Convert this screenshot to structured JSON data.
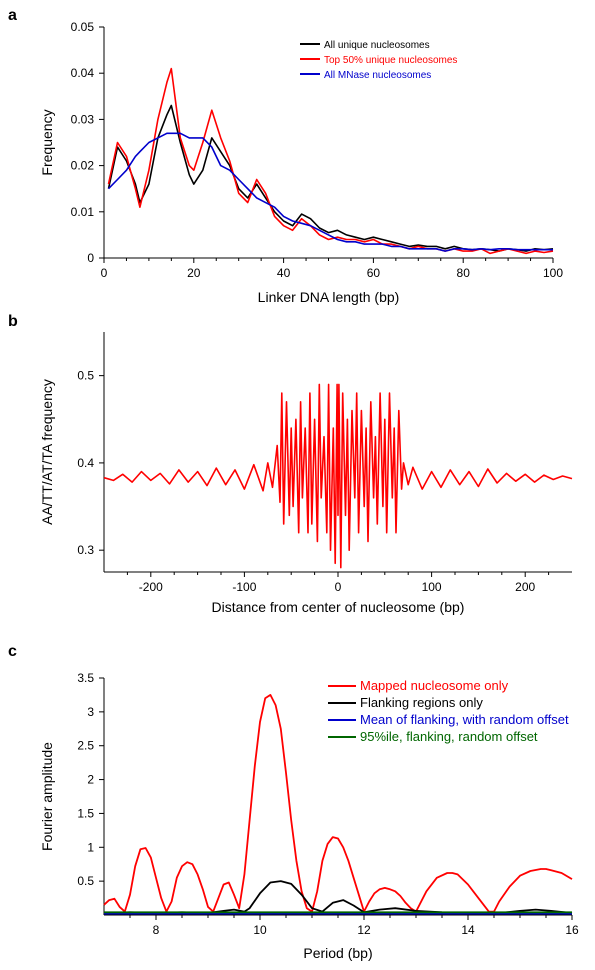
{
  "panels": {
    "a": {
      "letter": "a"
    },
    "b": {
      "letter": "b"
    },
    "c": {
      "letter": "c"
    }
  },
  "chart_data": [
    {
      "type": "line",
      "xlabel": "Linker DNA length (bp)",
      "ylabel": "Frequency",
      "xlim": [
        0,
        100
      ],
      "ylim": [
        0,
        0.05
      ],
      "x_ticks": [
        0,
        20,
        40,
        60,
        80,
        100
      ],
      "x_tick_labels": [
        "0",
        "20",
        "40",
        "60",
        "80",
        "100"
      ],
      "y_ticks": [
        0,
        0.01,
        0.02,
        0.03,
        0.04,
        0.05
      ],
      "y_tick_labels": [
        "0",
        "0.01",
        "0.02",
        "0.03",
        "0.04",
        "0.05"
      ],
      "legend_position": "top-right",
      "grid": false,
      "series": [
        {
          "name": "All unique nucleosomes",
          "color": "#000000",
          "x": [
            1,
            3,
            5,
            7,
            8,
            10,
            12,
            14,
            15,
            17,
            19,
            20,
            22,
            24,
            26,
            28,
            30,
            32,
            34,
            36,
            38,
            40,
            42,
            44,
            46,
            48,
            50,
            52,
            54,
            56,
            58,
            60,
            62,
            64,
            66,
            68,
            70,
            72,
            74,
            76,
            78,
            80,
            82,
            84,
            86,
            88,
            90,
            92,
            94,
            96,
            98,
            100
          ],
          "y": [
            0.015,
            0.024,
            0.021,
            0.016,
            0.012,
            0.016,
            0.026,
            0.031,
            0.033,
            0.025,
            0.018,
            0.016,
            0.019,
            0.026,
            0.023,
            0.02,
            0.015,
            0.013,
            0.016,
            0.013,
            0.01,
            0.008,
            0.007,
            0.0095,
            0.0085,
            0.0065,
            0.0055,
            0.006,
            0.005,
            0.0045,
            0.004,
            0.0045,
            0.004,
            0.0035,
            0.003,
            0.0025,
            0.0028,
            0.0025,
            0.0025,
            0.002,
            0.0025,
            0.002,
            0.0018,
            0.002,
            0.0018,
            0.0015,
            0.002,
            0.0018,
            0.0015,
            0.002,
            0.0018,
            0.002
          ]
        },
        {
          "name": "Top 50% unique nucleosomes",
          "color": "#ff0000",
          "x": [
            1,
            3,
            5,
            7,
            8,
            10,
            12,
            14,
            15,
            17,
            19,
            20,
            22,
            24,
            26,
            28,
            30,
            32,
            34,
            36,
            38,
            40,
            42,
            44,
            46,
            48,
            50,
            52,
            54,
            56,
            58,
            60,
            62,
            64,
            66,
            68,
            70,
            72,
            74,
            76,
            78,
            80,
            82,
            84,
            86,
            88,
            90,
            92,
            94,
            96,
            98,
            100
          ],
          "y": [
            0.016,
            0.025,
            0.022,
            0.015,
            0.011,
            0.019,
            0.03,
            0.038,
            0.041,
            0.026,
            0.02,
            0.019,
            0.025,
            0.032,
            0.026,
            0.021,
            0.014,
            0.012,
            0.017,
            0.014,
            0.009,
            0.007,
            0.006,
            0.0085,
            0.007,
            0.005,
            0.004,
            0.0045,
            0.004,
            0.004,
            0.0035,
            0.004,
            0.003,
            0.003,
            0.0025,
            0.002,
            0.0025,
            0.002,
            0.002,
            0.0015,
            0.002,
            0.0015,
            0.0015,
            0.002,
            0.001,
            0.0015,
            0.002,
            0.0015,
            0.001,
            0.0015,
            0.0012,
            0.0015
          ]
        },
        {
          "name": "All MNase nucleosomes",
          "color": "#0000cc",
          "x": [
            1,
            3,
            5,
            7,
            8,
            10,
            12,
            14,
            15,
            17,
            19,
            20,
            22,
            24,
            26,
            28,
            30,
            32,
            34,
            36,
            38,
            40,
            42,
            44,
            46,
            48,
            50,
            52,
            54,
            56,
            58,
            60,
            62,
            64,
            66,
            68,
            70,
            72,
            74,
            76,
            78,
            80,
            82,
            84,
            86,
            88,
            90,
            92,
            94,
            96,
            98,
            100
          ],
          "y": [
            0.015,
            0.017,
            0.019,
            0.022,
            0.023,
            0.025,
            0.026,
            0.027,
            0.027,
            0.027,
            0.026,
            0.026,
            0.026,
            0.024,
            0.02,
            0.019,
            0.017,
            0.015,
            0.013,
            0.012,
            0.011,
            0.009,
            0.008,
            0.0075,
            0.007,
            0.006,
            0.005,
            0.004,
            0.0035,
            0.0035,
            0.003,
            0.003,
            0.003,
            0.0025,
            0.0025,
            0.002,
            0.002,
            0.002,
            0.002,
            0.0015,
            0.002,
            0.002,
            0.0018,
            0.002,
            0.0018,
            0.002,
            0.002,
            0.0018,
            0.0018,
            0.0018,
            0.0018,
            0.0018
          ]
        }
      ]
    },
    {
      "type": "line",
      "xlabel": "Distance from center of nucleosome (bp)",
      "ylabel": "AA/TT/AT/TA frequency",
      "xlim": [
        -250,
        250
      ],
      "ylim": [
        0.275,
        0.55
      ],
      "x_ticks": [
        -200,
        -100,
        0,
        100,
        200
      ],
      "x_tick_labels": [
        "-200",
        "-100",
        "0",
        "100",
        "200"
      ],
      "y_ticks": [
        0.3,
        0.4,
        0.5
      ],
      "y_tick_labels": [
        "0.3",
        "0.4",
        "0.5"
      ],
      "grid": false,
      "series": [
        {
          "color": "#ff0000",
          "x": [
            -250,
            -240,
            -230,
            -220,
            -210,
            -200,
            -190,
            -180,
            -170,
            -160,
            -150,
            -140,
            -130,
            -120,
            -110,
            -100,
            -90,
            -80,
            -75,
            -70,
            -65,
            -62,
            -60,
            -58,
            -55,
            -52,
            -50,
            -48,
            -45,
            -42,
            -40,
            -38,
            -35,
            -32,
            -30,
            -28,
            -25,
            -22,
            -20,
            -18,
            -15,
            -12,
            -10,
            -8,
            -5,
            -3,
            -1,
            0,
            1,
            3,
            5,
            8,
            10,
            12,
            15,
            18,
            20,
            22,
            25,
            28,
            30,
            32,
            35,
            38,
            40,
            42,
            45,
            48,
            50,
            52,
            55,
            58,
            60,
            62,
            65,
            68,
            70,
            75,
            80,
            90,
            100,
            110,
            120,
            130,
            140,
            150,
            160,
            170,
            180,
            190,
            200,
            210,
            220,
            230,
            240,
            250
          ],
          "y": [
            0.383,
            0.38,
            0.387,
            0.378,
            0.39,
            0.38,
            0.388,
            0.376,
            0.392,
            0.378,
            0.39,
            0.374,
            0.394,
            0.375,
            0.392,
            0.37,
            0.398,
            0.368,
            0.4,
            0.372,
            0.42,
            0.355,
            0.48,
            0.33,
            0.47,
            0.34,
            0.44,
            0.35,
            0.45,
            0.32,
            0.47,
            0.36,
            0.44,
            0.32,
            0.48,
            0.33,
            0.45,
            0.31,
            0.49,
            0.36,
            0.43,
            0.32,
            0.49,
            0.3,
            0.44,
            0.285,
            0.49,
            0.34,
            0.49,
            0.28,
            0.48,
            0.34,
            0.45,
            0.3,
            0.46,
            0.36,
            0.48,
            0.32,
            0.46,
            0.35,
            0.44,
            0.31,
            0.47,
            0.36,
            0.43,
            0.33,
            0.48,
            0.35,
            0.45,
            0.32,
            0.48,
            0.36,
            0.44,
            0.32,
            0.46,
            0.37,
            0.4,
            0.375,
            0.395,
            0.37,
            0.39,
            0.372,
            0.392,
            0.375,
            0.39,
            0.373,
            0.393,
            0.377,
            0.388,
            0.379,
            0.387,
            0.378,
            0.386,
            0.381,
            0.385,
            0.382
          ]
        }
      ]
    },
    {
      "type": "line",
      "xlabel": "Period (bp)",
      "ylabel": "Fourier amplitude",
      "xlim": [
        7,
        16
      ],
      "ylim": [
        0,
        3.5
      ],
      "x_ticks": [
        8,
        10,
        12,
        14,
        16
      ],
      "x_tick_labels": [
        "8",
        "10",
        "12",
        "14",
        "16"
      ],
      "y_ticks": [
        0.5,
        1,
        1.5,
        2,
        2.5,
        3,
        3.5
      ],
      "y_tick_labels": [
        "0.5",
        "1",
        "1.5",
        "2",
        "2.5",
        "3",
        "3.5"
      ],
      "legend_position": "top-right",
      "grid": false,
      "series": [
        {
          "name": "Mapped nucleosome only",
          "color": "#ff0000",
          "x": [
            7.0,
            7.1,
            7.2,
            7.3,
            7.4,
            7.5,
            7.6,
            7.7,
            7.8,
            7.9,
            8.0,
            8.1,
            8.2,
            8.3,
            8.4,
            8.5,
            8.6,
            8.7,
            8.8,
            8.9,
            9.0,
            9.1,
            9.2,
            9.3,
            9.4,
            9.5,
            9.6,
            9.7,
            9.8,
            9.9,
            10.0,
            10.1,
            10.2,
            10.3,
            10.4,
            10.5,
            10.6,
            10.7,
            10.8,
            10.9,
            11.0,
            11.1,
            11.2,
            11.3,
            11.4,
            11.5,
            11.6,
            11.7,
            11.8,
            11.9,
            12.0,
            12.1,
            12.2,
            12.3,
            12.4,
            12.5,
            12.6,
            12.7,
            12.8,
            12.9,
            13.0,
            13.2,
            13.4,
            13.6,
            13.7,
            13.8,
            14.0,
            14.2,
            14.4,
            14.5,
            14.6,
            14.8,
            15.0,
            15.2,
            15.4,
            15.5,
            15.6,
            15.8,
            16.0
          ],
          "y": [
            0.15,
            0.22,
            0.24,
            0.12,
            0.05,
            0.3,
            0.72,
            0.97,
            0.99,
            0.85,
            0.55,
            0.25,
            0.05,
            0.2,
            0.55,
            0.72,
            0.78,
            0.75,
            0.6,
            0.38,
            0.12,
            0.05,
            0.25,
            0.45,
            0.48,
            0.3,
            0.1,
            0.6,
            1.4,
            2.2,
            2.85,
            3.2,
            3.25,
            3.1,
            2.75,
            2.1,
            1.4,
            0.8,
            0.35,
            0.1,
            0.05,
            0.35,
            0.8,
            1.05,
            1.15,
            1.13,
            1.0,
            0.8,
            0.55,
            0.3,
            0.05,
            0.2,
            0.32,
            0.38,
            0.4,
            0.38,
            0.35,
            0.28,
            0.18,
            0.1,
            0.05,
            0.35,
            0.55,
            0.62,
            0.62,
            0.6,
            0.45,
            0.25,
            0.05,
            0.05,
            0.2,
            0.42,
            0.58,
            0.65,
            0.68,
            0.68,
            0.66,
            0.62,
            0.53
          ]
        },
        {
          "name": "Flanking regions only",
          "color": "#000000",
          "x": [
            7.0,
            7.5,
            8.0,
            8.5,
            9.0,
            9.3,
            9.5,
            9.7,
            9.8,
            10.0,
            10.2,
            10.4,
            10.6,
            10.8,
            11.0,
            11.2,
            11.4,
            11.6,
            11.8,
            12.0,
            12.3,
            12.6,
            13.0,
            13.5,
            14.0,
            14.5,
            15.0,
            15.3,
            15.6,
            16.0
          ],
          "y": [
            0.03,
            0.04,
            0.03,
            0.04,
            0.03,
            0.06,
            0.08,
            0.05,
            0.1,
            0.32,
            0.48,
            0.5,
            0.46,
            0.3,
            0.1,
            0.05,
            0.18,
            0.22,
            0.14,
            0.04,
            0.08,
            0.1,
            0.06,
            0.04,
            0.03,
            0.02,
            0.06,
            0.08,
            0.06,
            0.03
          ]
        },
        {
          "name": "Mean of flanking, with random offset",
          "color": "#0000cc",
          "x": [
            7.0,
            8.0,
            9.0,
            10.0,
            11.0,
            12.0,
            13.0,
            14.0,
            15.0,
            16.0
          ],
          "y": [
            0.02,
            0.02,
            0.02,
            0.02,
            0.02,
            0.02,
            0.02,
            0.02,
            0.02,
            0.02
          ]
        },
        {
          "name": "95%ile, flanking, random offset",
          "color": "#006600",
          "x": [
            7.0,
            8.0,
            9.0,
            10.0,
            11.0,
            12.0,
            13.0,
            14.0,
            15.0,
            16.0
          ],
          "y": [
            0.04,
            0.04,
            0.04,
            0.04,
            0.04,
            0.04,
            0.04,
            0.04,
            0.04,
            0.04
          ]
        }
      ]
    }
  ]
}
